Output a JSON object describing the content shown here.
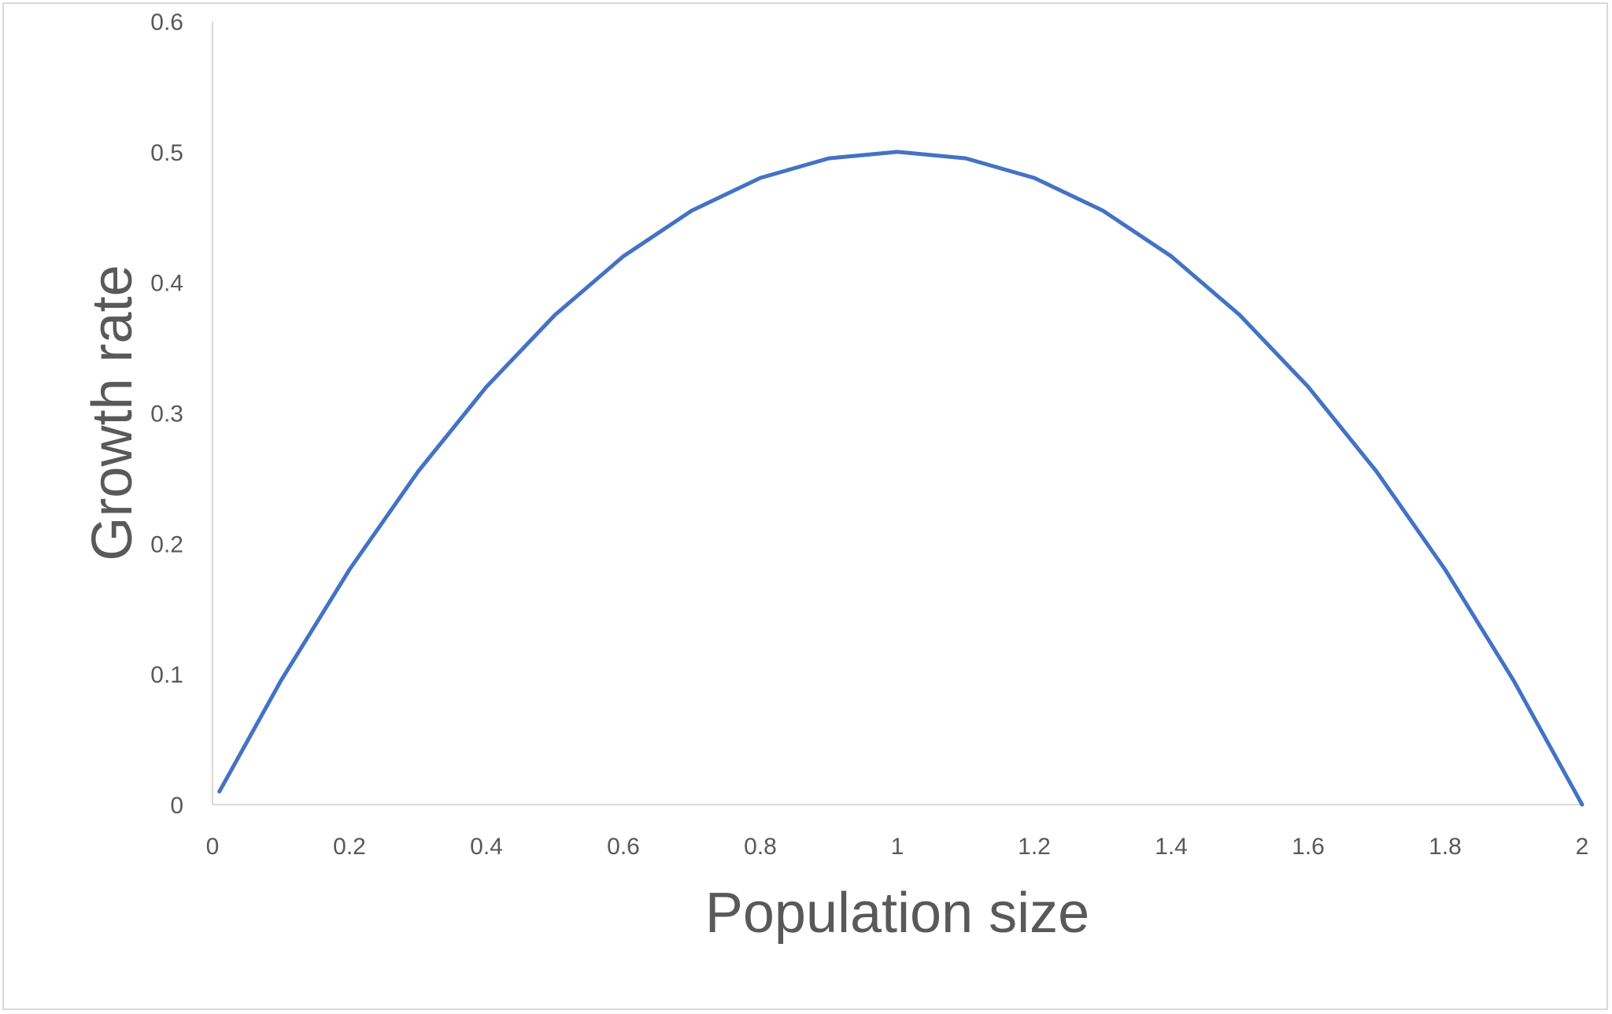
{
  "chart_data": {
    "type": "line",
    "title": "",
    "xlabel": "Population size",
    "ylabel": "Growth rate",
    "xlim": [
      0,
      2
    ],
    "ylim": [
      0,
      0.6
    ],
    "x_ticks": [
      "0",
      "0.2",
      "0.4",
      "0.6",
      "0.8",
      "1",
      "1.2",
      "1.4",
      "1.6",
      "1.8",
      "2"
    ],
    "y_ticks": [
      "0",
      "0.1",
      "0.2",
      "0.3",
      "0.4",
      "0.5",
      "0.6"
    ],
    "grid": false,
    "legend": "none",
    "series": [
      {
        "color": "#4472c4",
        "x": [
          0.01,
          0.1,
          0.2,
          0.3,
          0.4,
          0.5,
          0.6,
          0.7,
          0.8,
          0.9,
          1.0,
          1.1,
          1.2,
          1.3,
          1.4,
          1.5,
          1.6,
          1.7,
          1.8,
          1.9,
          2.0
        ],
        "y": [
          0.01,
          0.095,
          0.18,
          0.255,
          0.32,
          0.375,
          0.42,
          0.455,
          0.48,
          0.495,
          0.5,
          0.495,
          0.48,
          0.455,
          0.42,
          0.375,
          0.32,
          0.255,
          0.18,
          0.095,
          0.0
        ]
      }
    ]
  }
}
